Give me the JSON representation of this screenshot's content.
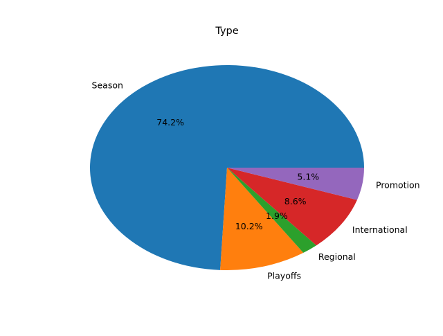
{
  "chart_data": {
    "type": "pie",
    "title": "Type",
    "slices": [
      {
        "label": "Season",
        "value": 74.2,
        "pct_label": "74.2%",
        "color": "#1f77b4"
      },
      {
        "label": "Playoffs",
        "value": 10.2,
        "pct_label": "10.2%",
        "color": "#ff7f0e"
      },
      {
        "label": "Regional",
        "value": 1.9,
        "pct_label": "1.9%",
        "color": "#2ca02c"
      },
      {
        "label": "International",
        "value": 8.6,
        "pct_label": "8.6%",
        "color": "#d62728"
      },
      {
        "label": "Promotion",
        "value": 5.1,
        "pct_label": "5.1%",
        "color": "#9467bd"
      }
    ]
  }
}
